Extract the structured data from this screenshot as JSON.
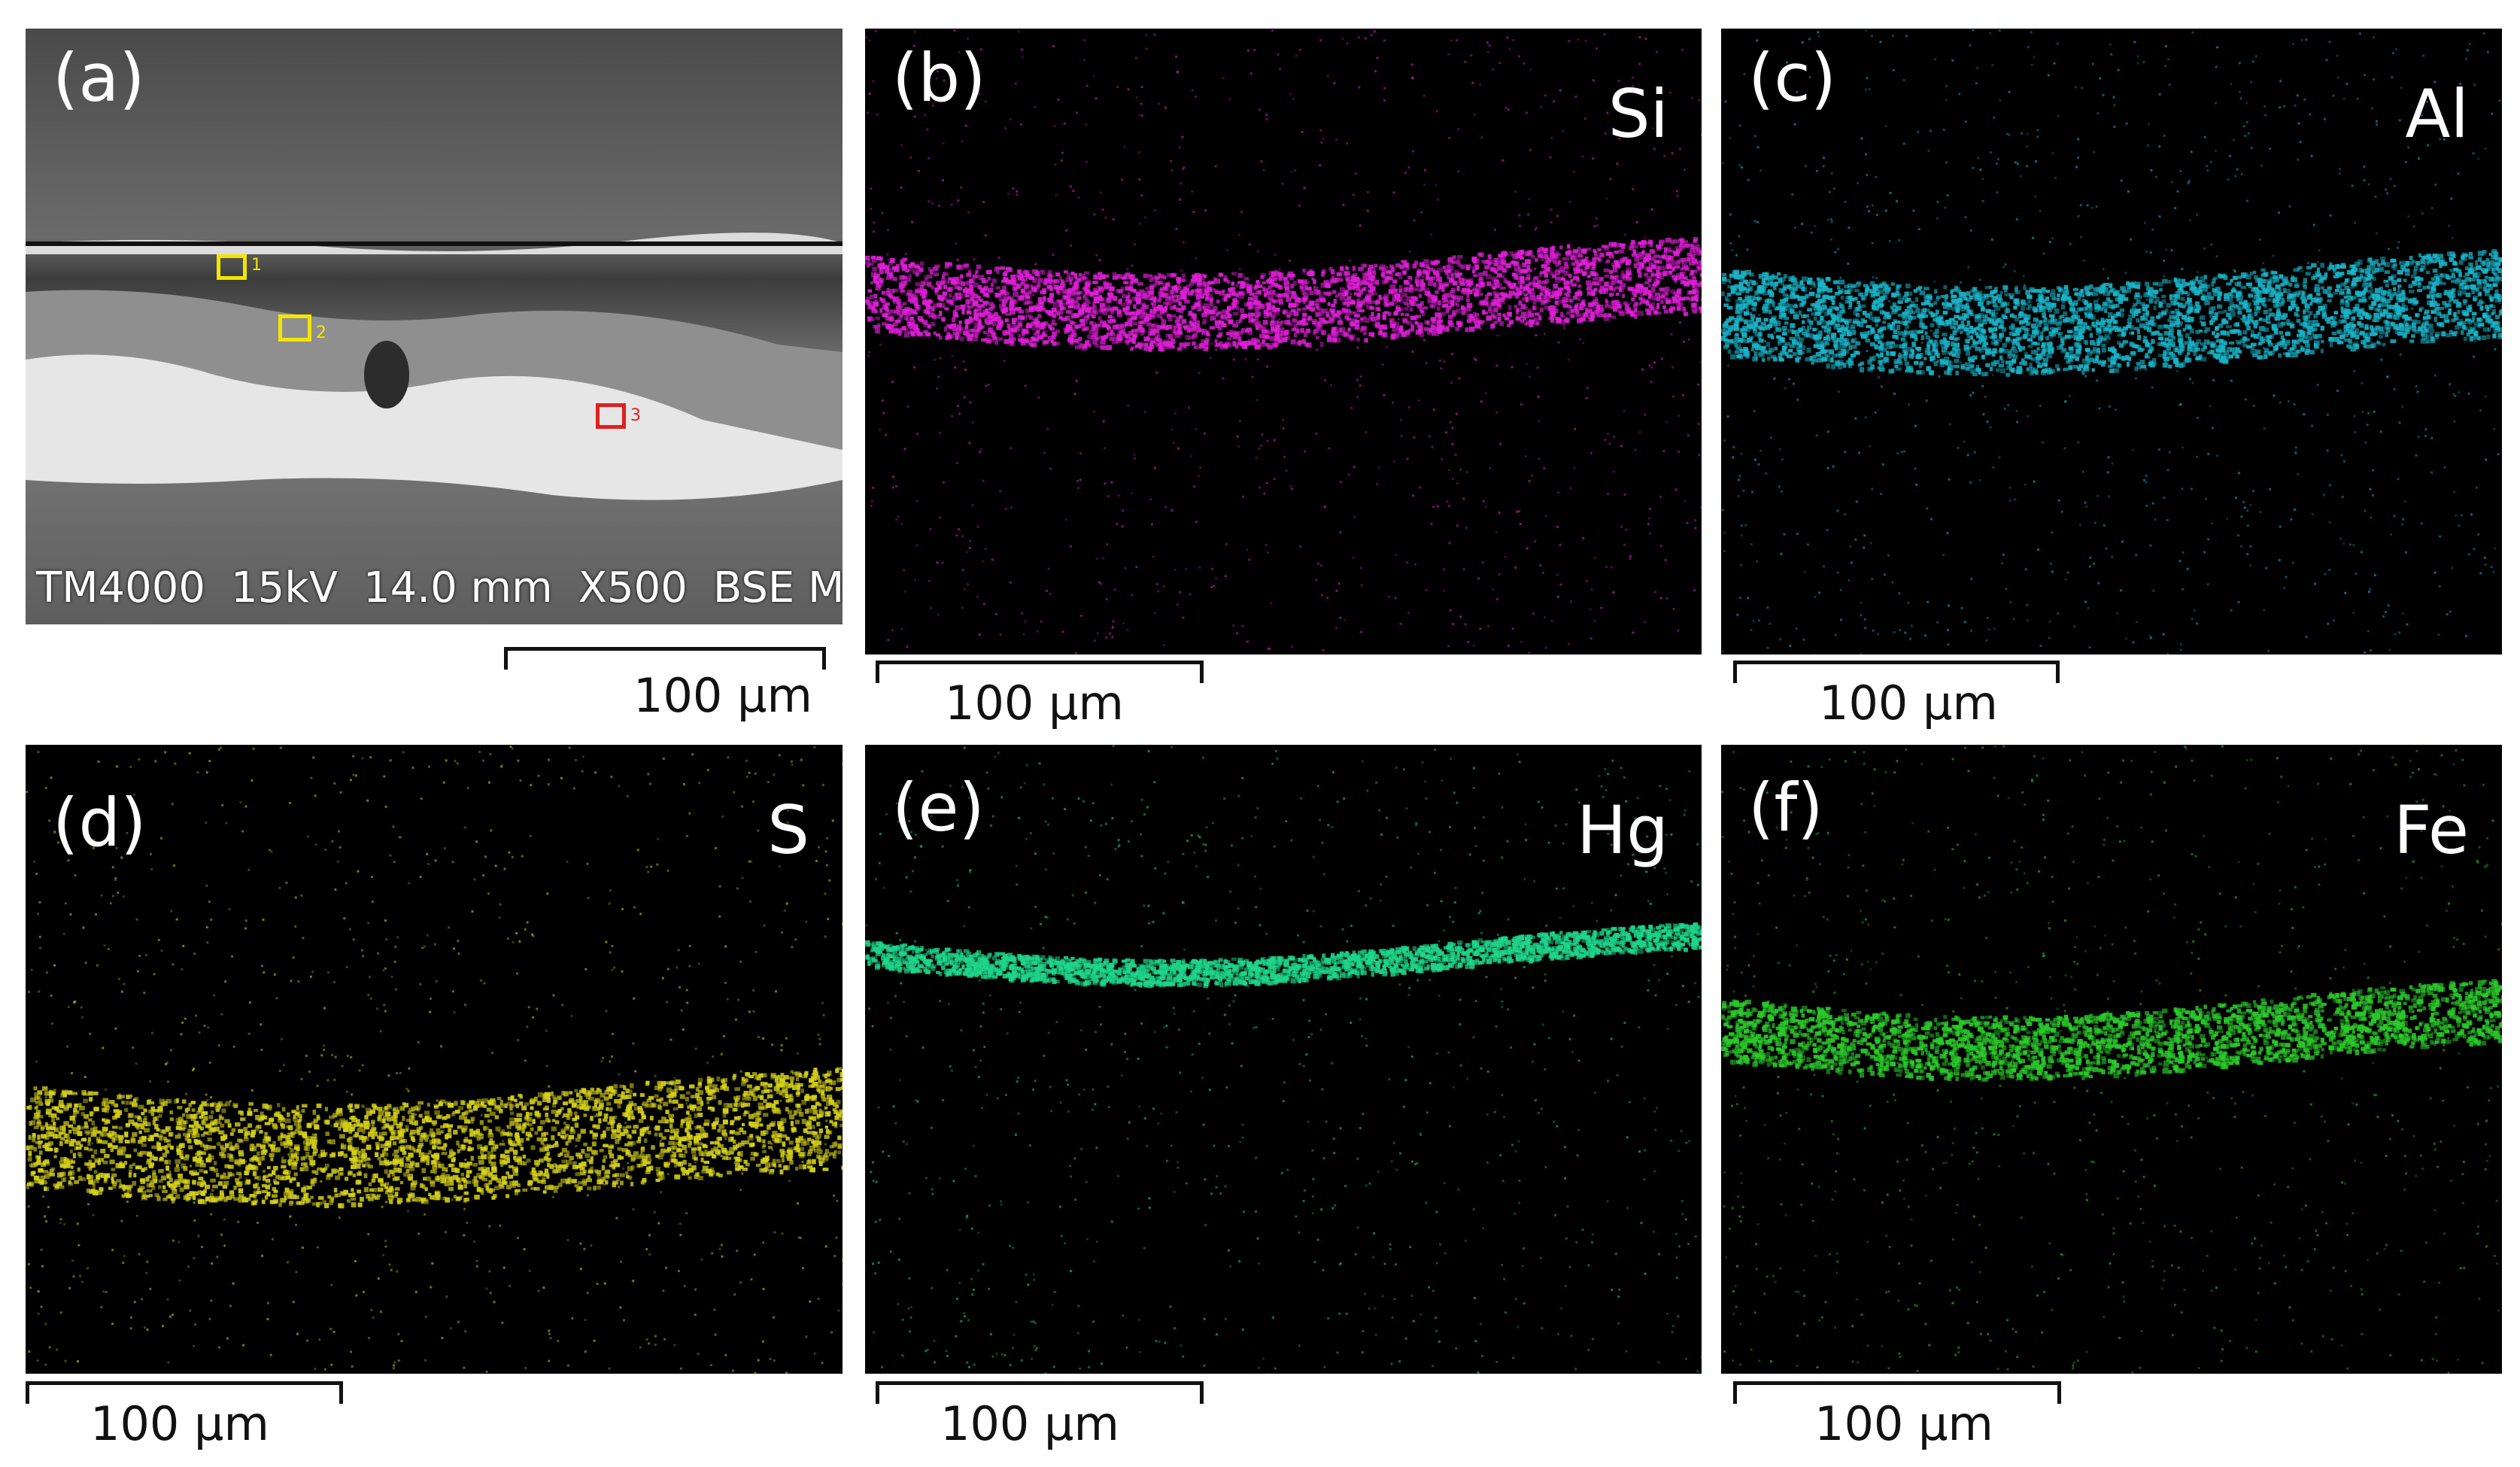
{
  "panels": [
    {
      "label": "(a)",
      "element": ""
    },
    {
      "label": "(b)",
      "element": "Si",
      "color": "#e01fd8"
    },
    {
      "label": "(c)",
      "element": "Al",
      "color": "#19b4c8"
    },
    {
      "label": "(d)",
      "element": "S",
      "color": "#d6d21a"
    },
    {
      "label": "(e)",
      "element": "Hg",
      "color": "#1fd58a"
    },
    {
      "label": "(f)",
      "element": "Fe",
      "color": "#2bc92b"
    }
  ],
  "sem_info": {
    "instrument": "TM4000",
    "voltage": "15kV",
    "working_distance": "14.0 mm",
    "magnification": "X500",
    "detector": "BSE M"
  },
  "roi_markers": [
    {
      "number": "1",
      "color": "#f2e600"
    },
    {
      "number": "2",
      "color": "#f2e600"
    },
    {
      "number": "3",
      "color": "#e0201f"
    }
  ],
  "scale_bar_label": "100 µm"
}
